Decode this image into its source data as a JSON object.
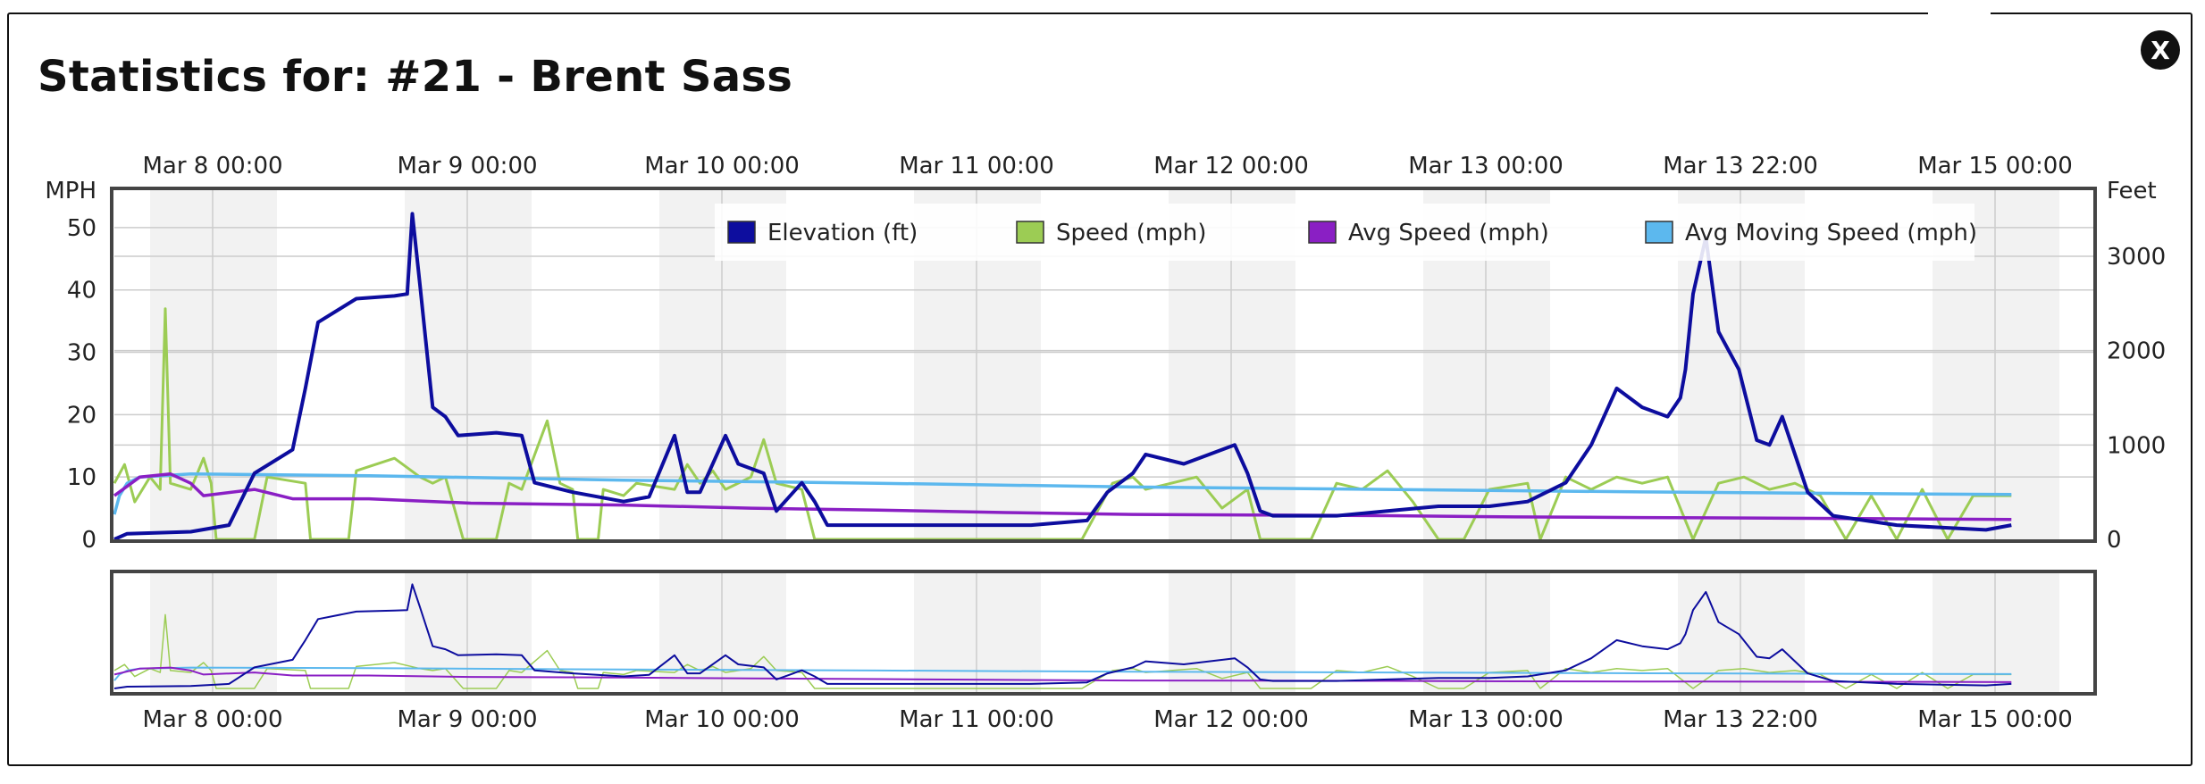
{
  "window": {
    "title": "Statistics for: #21 - Brent Sass",
    "close_label": "X"
  },
  "chart_data": {
    "type": "line",
    "x_ticks": [
      "Mar 8 00:00",
      "Mar 9 00:00",
      "Mar 10 00:00",
      "Mar 11 00:00",
      "Mar 12 00:00",
      "Mar 13 00:00",
      "Mar 13 22:00",
      "Mar 15 00:00"
    ],
    "y_left": {
      "label": "MPH",
      "ticks": [
        0,
        10,
        20,
        30,
        40,
        50
      ],
      "range": [
        0,
        56
      ]
    },
    "y_right": {
      "label": "Feet",
      "ticks": [
        0,
        1000,
        2000,
        3000
      ],
      "range": [
        0,
        3700
      ]
    },
    "grid": true,
    "legend": [
      "Elevation (ft)",
      "Speed (mph)",
      "Avg Speed (mph)",
      "Avg Moving Speed (mph)"
    ],
    "colors": {
      "elevation": "#0d0d9e",
      "speed": "#9ccc54",
      "avg_speed": "#8a1fc4",
      "avg_moving_speed": "#5cb8ee",
      "band": "#f2f2f2",
      "grid": "#cccccc",
      "frame": "#444444"
    },
    "series": [
      {
        "name": "Elevation (ft)",
        "axis": "right",
        "points": [
          [
            0.0,
            0
          ],
          [
            0.05,
            60
          ],
          [
            0.3,
            80
          ],
          [
            0.45,
            150
          ],
          [
            0.55,
            700
          ],
          [
            0.7,
            950
          ],
          [
            0.75,
            1600
          ],
          [
            0.8,
            2300
          ],
          [
            0.95,
            2550
          ],
          [
            1.1,
            2580
          ],
          [
            1.15,
            2600
          ],
          [
            1.17,
            3450
          ],
          [
            1.2,
            2700
          ],
          [
            1.25,
            1400
          ],
          [
            1.3,
            1300
          ],
          [
            1.35,
            1100
          ],
          [
            1.5,
            1130
          ],
          [
            1.6,
            1100
          ],
          [
            1.65,
            600
          ],
          [
            1.8,
            500
          ],
          [
            2.0,
            400
          ],
          [
            2.1,
            450
          ],
          [
            2.2,
            1100
          ],
          [
            2.25,
            500
          ],
          [
            2.3,
            500
          ],
          [
            2.4,
            1100
          ],
          [
            2.45,
            800
          ],
          [
            2.55,
            700
          ],
          [
            2.6,
            300
          ],
          [
            2.7,
            600
          ],
          [
            2.75,
            400
          ],
          [
            2.8,
            150
          ],
          [
            3.0,
            150
          ],
          [
            3.3,
            150
          ],
          [
            3.6,
            150
          ],
          [
            3.82,
            200
          ],
          [
            3.9,
            500
          ],
          [
            4.0,
            700
          ],
          [
            4.05,
            900
          ],
          [
            4.2,
            800
          ],
          [
            4.4,
            1000
          ],
          [
            4.45,
            700
          ],
          [
            4.5,
            300
          ],
          [
            4.55,
            250
          ],
          [
            4.8,
            250
          ],
          [
            5.0,
            300
          ],
          [
            5.2,
            350
          ],
          [
            5.4,
            350
          ],
          [
            5.55,
            400
          ],
          [
            5.7,
            600
          ],
          [
            5.8,
            1000
          ],
          [
            5.9,
            1600
          ],
          [
            6.0,
            1400
          ],
          [
            6.1,
            1300
          ],
          [
            6.15,
            1500
          ],
          [
            6.17,
            1800
          ],
          [
            6.2,
            2600
          ],
          [
            6.25,
            3200
          ],
          [
            6.3,
            2200
          ],
          [
            6.38,
            1800
          ],
          [
            6.45,
            1050
          ],
          [
            6.5,
            1000
          ],
          [
            6.55,
            1300
          ],
          [
            6.65,
            500
          ],
          [
            6.75,
            250
          ],
          [
            7.0,
            150
          ],
          [
            7.35,
            100
          ],
          [
            7.45,
            150
          ]
        ]
      },
      {
        "name": "Speed (mph)",
        "axis": "left",
        "points": [
          [
            0.0,
            9
          ],
          [
            0.04,
            12
          ],
          [
            0.08,
            6
          ],
          [
            0.14,
            10
          ],
          [
            0.18,
            8
          ],
          [
            0.2,
            37
          ],
          [
            0.22,
            9
          ],
          [
            0.3,
            8
          ],
          [
            0.35,
            13
          ],
          [
            0.38,
            9
          ],
          [
            0.4,
            0
          ],
          [
            0.55,
            0
          ],
          [
            0.6,
            10
          ],
          [
            0.75,
            9
          ],
          [
            0.77,
            0
          ],
          [
            0.92,
            0
          ],
          [
            0.95,
            11
          ],
          [
            1.1,
            13
          ],
          [
            1.2,
            10
          ],
          [
            1.25,
            9
          ],
          [
            1.3,
            10
          ],
          [
            1.37,
            0
          ],
          [
            1.5,
            0
          ],
          [
            1.55,
            9
          ],
          [
            1.6,
            8
          ],
          [
            1.7,
            19
          ],
          [
            1.75,
            9
          ],
          [
            1.8,
            8
          ],
          [
            1.82,
            0
          ],
          [
            1.9,
            0
          ],
          [
            1.92,
            8
          ],
          [
            2.0,
            7
          ],
          [
            2.05,
            9
          ],
          [
            2.2,
            8
          ],
          [
            2.25,
            12
          ],
          [
            2.3,
            9
          ],
          [
            2.35,
            11
          ],
          [
            2.4,
            8
          ],
          [
            2.5,
            10
          ],
          [
            2.55,
            16
          ],
          [
            2.6,
            9
          ],
          [
            2.7,
            8
          ],
          [
            2.75,
            0
          ],
          [
            3.0,
            0
          ],
          [
            3.4,
            0
          ],
          [
            3.8,
            0
          ],
          [
            3.92,
            9
          ],
          [
            4.0,
            10
          ],
          [
            4.05,
            8
          ],
          [
            4.15,
            9
          ],
          [
            4.25,
            10
          ],
          [
            4.35,
            5
          ],
          [
            4.45,
            8
          ],
          [
            4.5,
            0
          ],
          [
            4.7,
            0
          ],
          [
            4.8,
            9
          ],
          [
            4.9,
            8
          ],
          [
            5.0,
            11
          ],
          [
            5.1,
            6
          ],
          [
            5.2,
            0
          ],
          [
            5.3,
            0
          ],
          [
            5.4,
            8
          ],
          [
            5.55,
            9
          ],
          [
            5.6,
            0
          ],
          [
            5.7,
            10
          ],
          [
            5.8,
            8
          ],
          [
            5.9,
            10
          ],
          [
            6.0,
            9
          ],
          [
            6.1,
            10
          ],
          [
            6.2,
            0
          ],
          [
            6.3,
            9
          ],
          [
            6.4,
            10
          ],
          [
            6.5,
            8
          ],
          [
            6.6,
            9
          ],
          [
            6.7,
            7
          ],
          [
            6.8,
            0
          ],
          [
            6.9,
            7
          ],
          [
            7.0,
            0
          ],
          [
            7.1,
            8
          ],
          [
            7.2,
            0
          ],
          [
            7.3,
            7
          ],
          [
            7.45,
            7
          ]
        ]
      },
      {
        "name": "Avg Speed (mph)",
        "axis": "left",
        "points": [
          [
            0.0,
            7
          ],
          [
            0.1,
            10
          ],
          [
            0.22,
            10.5
          ],
          [
            0.3,
            9
          ],
          [
            0.35,
            7
          ],
          [
            0.55,
            8
          ],
          [
            0.7,
            6.5
          ],
          [
            1.0,
            6.5
          ],
          [
            1.4,
            5.8
          ],
          [
            2.0,
            5.5
          ],
          [
            2.5,
            5
          ],
          [
            3.0,
            4.7
          ],
          [
            3.5,
            4.3
          ],
          [
            4.0,
            4
          ],
          [
            4.5,
            3.9
          ],
          [
            5.0,
            3.8
          ],
          [
            5.5,
            3.6
          ],
          [
            6.0,
            3.5
          ],
          [
            6.5,
            3.4
          ],
          [
            7.0,
            3.3
          ],
          [
            7.45,
            3.2
          ]
        ]
      },
      {
        "name": "Avg Moving Speed (mph)",
        "axis": "left",
        "points": [
          [
            0.0,
            4
          ],
          [
            0.02,
            7
          ],
          [
            0.05,
            9
          ],
          [
            0.1,
            10
          ],
          [
            0.3,
            10.5
          ],
          [
            1.0,
            10.2
          ],
          [
            2.0,
            9.5
          ],
          [
            3.0,
            9
          ],
          [
            4.0,
            8.4
          ],
          [
            5.0,
            8
          ],
          [
            6.0,
            7.6
          ],
          [
            7.0,
            7.3
          ],
          [
            7.45,
            7.2
          ]
        ]
      }
    ]
  }
}
